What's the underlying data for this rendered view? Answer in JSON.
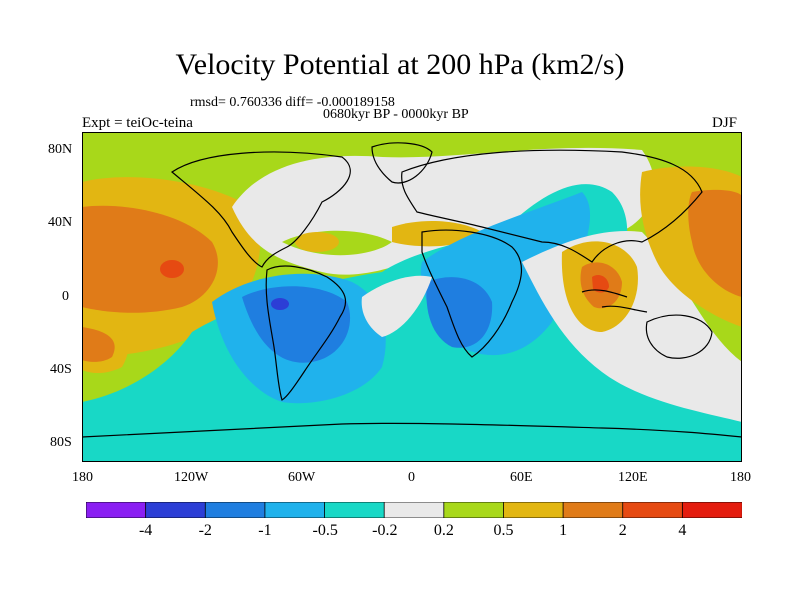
{
  "title": "Velocity Potential at 200 hPa (km2/s)",
  "stats_line": "rmsd= 0.760336 diff= -0.000189158",
  "period": "0680kyr BP - 0000kyr BP",
  "experiment": "Expt = teiOc-teina",
  "season": "DJF",
  "lat_ticks": [
    "80N",
    "40N",
    "0",
    "40S",
    "80S"
  ],
  "lon_ticks": [
    "180",
    "120W",
    "60W",
    "0",
    "60E",
    "120E",
    "180"
  ],
  "colorbar": {
    "labels": [
      "-4",
      "-2",
      "-1",
      "-0.5",
      "-0.2",
      "0.2",
      "0.5",
      "1",
      "2",
      "4"
    ],
    "colors": [
      "#8a1ef2",
      "#2c3ed6",
      "#1f7ee0",
      "#20b2ec",
      "#18d8c6",
      "#e9e9e9",
      "#a8d81a",
      "#e2b612",
      "#e07b18",
      "#e64a12",
      "#e41c0e"
    ]
  },
  "map_colors": {
    "ocean_base": "#a8d81a",
    "neutral": "#e9e9e9",
    "weak_negative": "#18d8c6",
    "moderate_negative": "#20b2ec",
    "negative": "#1f7ee0",
    "strong_negative": "#2c3ed6",
    "weak_positive": "#e2b612",
    "positive": "#e07b18",
    "strong_positive": "#e64a12"
  }
}
